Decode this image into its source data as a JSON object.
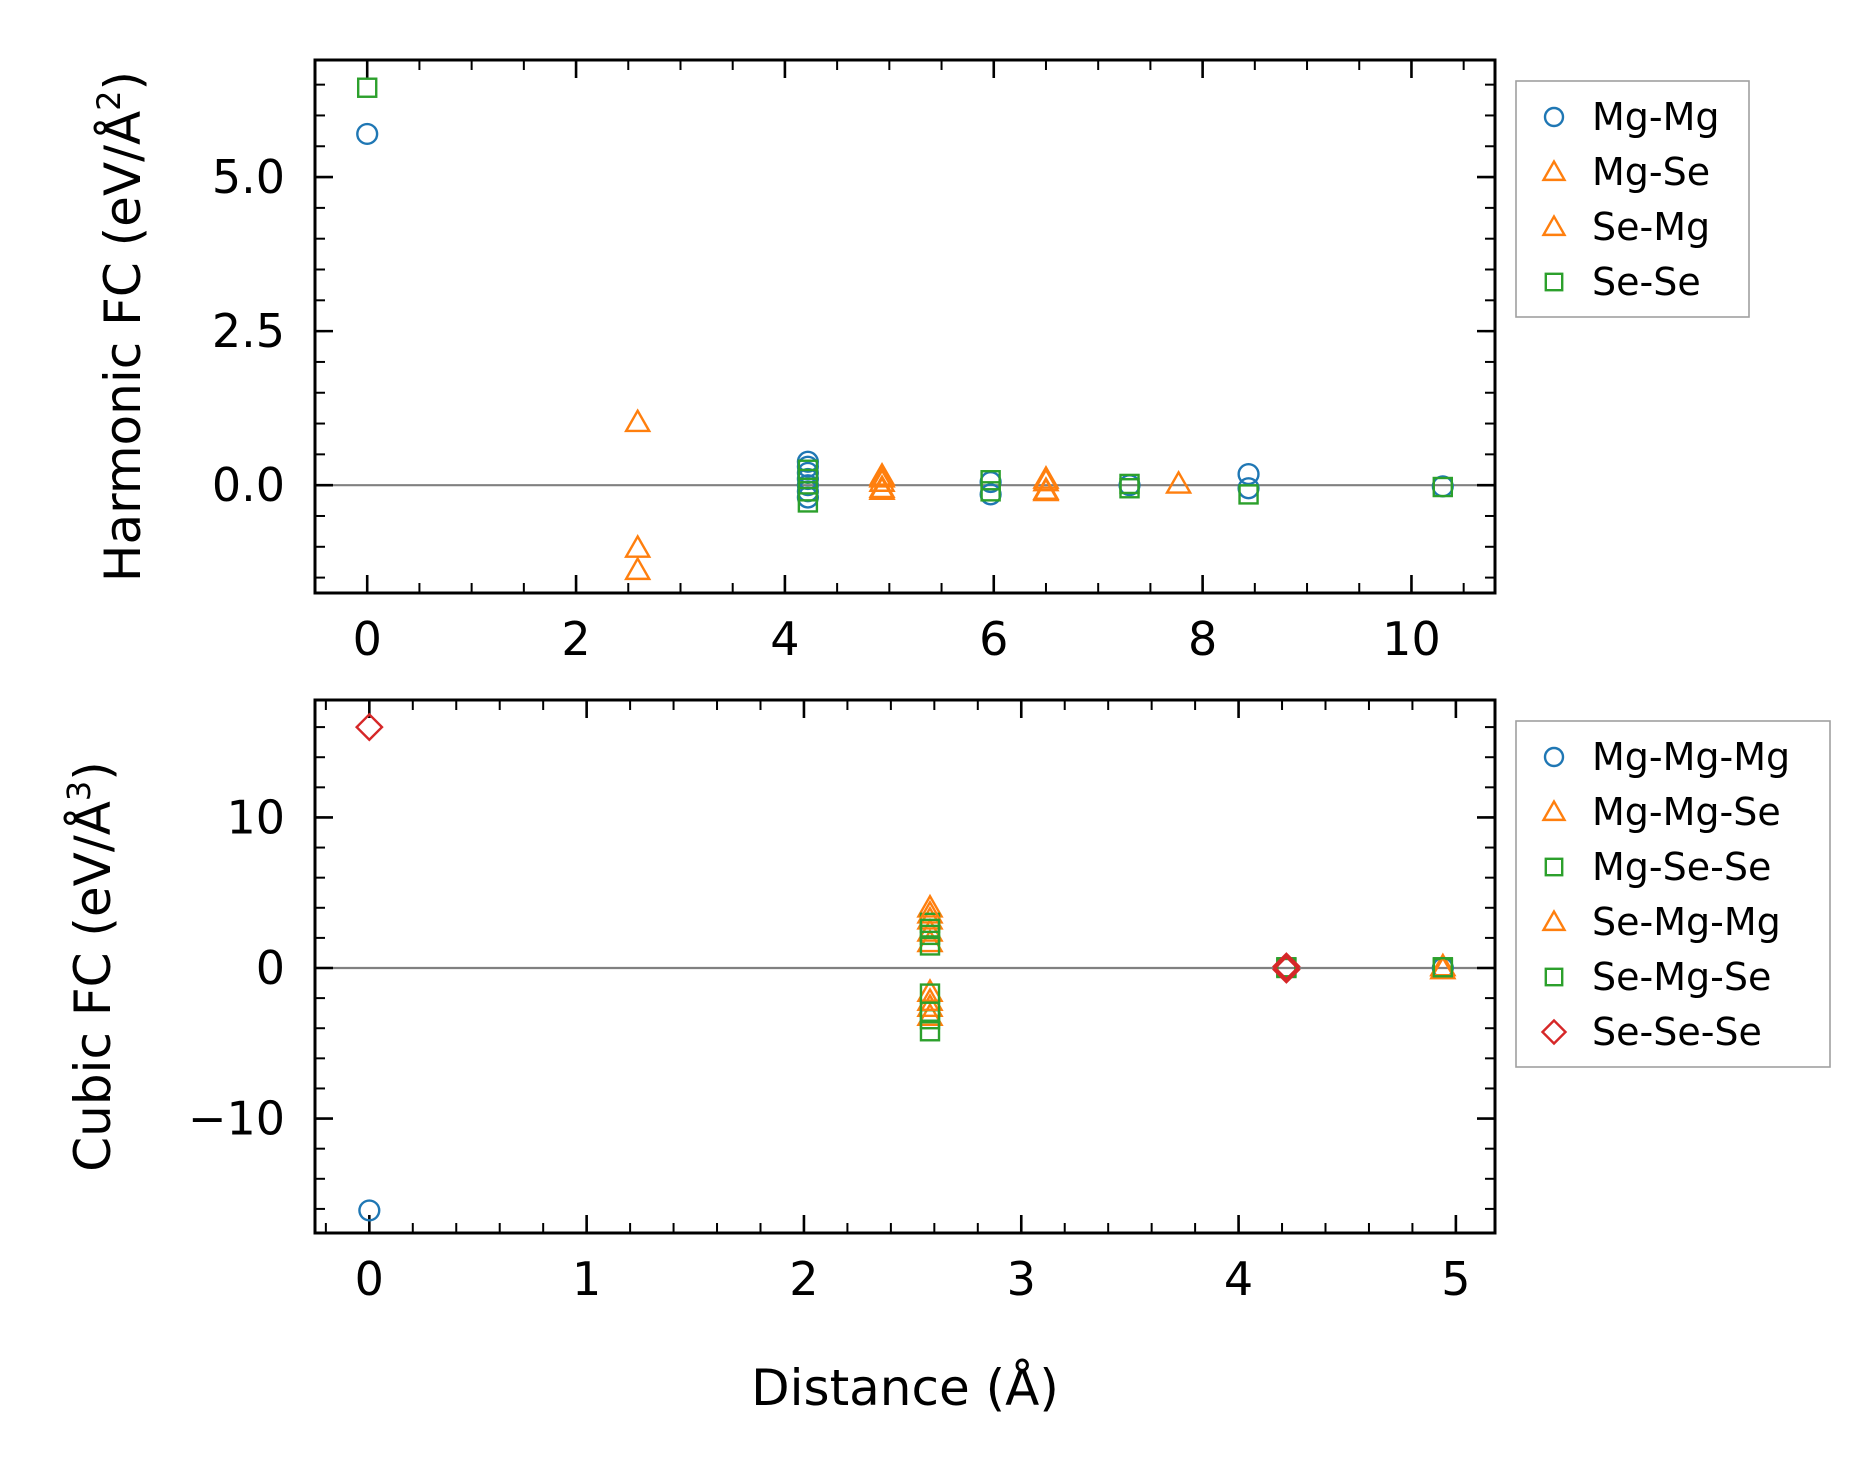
{
  "chart_data": [
    {
      "type": "scatter",
      "title": "",
      "ylabel": "Harmonic FC (eV/Å",
      "ylabel_sup": "2",
      "ylabel_end": ")",
      "xlabel": "",
      "xlim": [
        -0.5,
        10.8
      ],
      "ylim": [
        -1.75,
        6.9
      ],
      "xticks": [
        0,
        2,
        4,
        6,
        8,
        10
      ],
      "xtick_labels": [
        "0",
        "2",
        "4",
        "6",
        "8",
        "10"
      ],
      "yticks": [
        0.0,
        2.5,
        5.0
      ],
      "ytick_labels": [
        "0.0",
        "2.5",
        "5.0"
      ],
      "zero_line": true,
      "legend_position": "outside-right-top",
      "series": [
        {
          "name": "Mg-Mg",
          "marker": "circle",
          "color": "#1f77b4",
          "points": [
            [
              0,
              5.7
            ],
            [
              4.22,
              0.38
            ],
            [
              4.22,
              0.3
            ],
            [
              4.22,
              0.2
            ],
            [
              4.22,
              0.1
            ],
            [
              4.22,
              0.0
            ],
            [
              4.22,
              -0.1
            ],
            [
              4.22,
              -0.2
            ],
            [
              5.97,
              0.05
            ],
            [
              5.97,
              -0.15
            ],
            [
              7.3,
              0.0
            ],
            [
              8.44,
              0.18
            ],
            [
              8.44,
              -0.05
            ],
            [
              10.3,
              -0.02
            ]
          ]
        },
        {
          "name": "Mg-Se",
          "marker": "triangle",
          "color": "#ff7f0e",
          "points": [
            [
              2.59,
              1.02
            ],
            [
              2.59,
              -1.02
            ],
            [
              2.59,
              -1.38
            ],
            [
              4.93,
              0.15
            ],
            [
              4.93,
              0.05
            ],
            [
              4.93,
              -0.08
            ],
            [
              6.5,
              0.1
            ],
            [
              6.5,
              -0.08
            ],
            [
              7.77,
              0.02
            ]
          ]
        },
        {
          "name": "Se-Mg",
          "marker": "triangle",
          "color": "#ff7f0e",
          "points": [
            [
              4.93,
              0.12
            ],
            [
              4.93,
              -0.05
            ],
            [
              6.5,
              0.06
            ],
            [
              6.5,
              -0.1
            ]
          ]
        },
        {
          "name": "Se-Se",
          "marker": "square",
          "color": "#2ca02c",
          "points": [
            [
              0,
              6.45
            ],
            [
              4.22,
              0.25
            ],
            [
              4.22,
              0.1
            ],
            [
              4.22,
              -0.1
            ],
            [
              4.22,
              -0.28
            ],
            [
              5.97,
              0.08
            ],
            [
              5.97,
              -0.1
            ],
            [
              7.3,
              0.02
            ],
            [
              7.3,
              -0.05
            ],
            [
              8.44,
              -0.15
            ],
            [
              10.3,
              -0.03
            ]
          ]
        }
      ]
    },
    {
      "type": "scatter",
      "title": "",
      "ylabel": "Cubic FC (eV/Å",
      "ylabel_sup": "3",
      "ylabel_end": ")",
      "xlabel": "Distance (Å)",
      "xlim": [
        -0.25,
        5.18
      ],
      "ylim": [
        -17.6,
        17.8
      ],
      "xticks": [
        0,
        1,
        2,
        3,
        4,
        5
      ],
      "xtick_labels": [
        "0",
        "1",
        "2",
        "3",
        "4",
        "5"
      ],
      "yticks": [
        -10,
        0,
        10
      ],
      "ytick_labels": [
        "−10",
        "0",
        "10"
      ],
      "zero_line": true,
      "legend_position": "outside-right-top",
      "series": [
        {
          "name": "Mg-Mg-Mg",
          "marker": "circle",
          "color": "#1f77b4",
          "points": [
            [
              0,
              -16.1
            ],
            [
              4.22,
              0.0
            ],
            [
              4.94,
              0.0
            ]
          ]
        },
        {
          "name": "Mg-Mg-Se",
          "marker": "triangle",
          "color": "#ff7f0e",
          "points": [
            [
              2.58,
              4.0
            ],
            [
              2.58,
              3.2
            ],
            [
              2.58,
              2.4
            ],
            [
              2.58,
              1.7
            ],
            [
              2.58,
              -1.6
            ],
            [
              2.58,
              -2.6
            ],
            [
              2.58,
              -3.2
            ],
            [
              4.94,
              0.1
            ]
          ]
        },
        {
          "name": "Mg-Se-Se",
          "marker": "square",
          "color": "#2ca02c",
          "points": [
            [
              2.58,
              3.0
            ],
            [
              2.58,
              2.2
            ],
            [
              2.58,
              1.5
            ],
            [
              2.58,
              -1.7
            ],
            [
              2.58,
              -3.4
            ],
            [
              2.58,
              -4.2
            ],
            [
              4.22,
              0.0
            ],
            [
              4.94,
              0.0
            ]
          ]
        },
        {
          "name": "Se-Mg-Mg",
          "marker": "triangle",
          "color": "#ff7f0e",
          "points": [
            [
              2.58,
              3.6
            ],
            [
              2.58,
              -2.2
            ],
            [
              4.94,
              -0.1
            ]
          ]
        },
        {
          "name": "Se-Mg-Se",
          "marker": "square",
          "color": "#2ca02c",
          "points": [
            [
              2.58,
              2.6
            ],
            [
              2.58,
              -2.9
            ],
            [
              4.22,
              0.05
            ],
            [
              4.94,
              0.05
            ]
          ]
        },
        {
          "name": "Se-Se-Se",
          "marker": "diamond",
          "color": "#d62728",
          "points": [
            [
              0,
              16.0
            ],
            [
              4.22,
              0.1
            ],
            [
              4.22,
              -0.1
            ]
          ]
        }
      ]
    }
  ]
}
